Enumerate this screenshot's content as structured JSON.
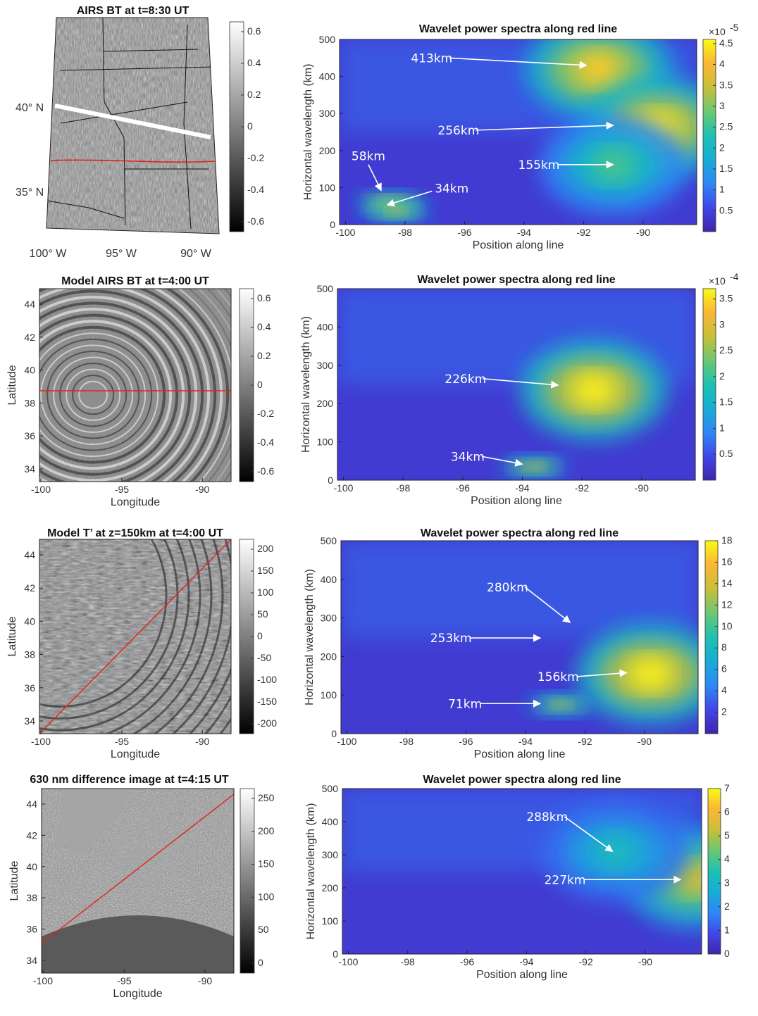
{
  "colors": {
    "viridis_low": "#3e26a8",
    "viridis_high": "#f9fb15",
    "red_line": "#e0231e",
    "arrow": "#ffffff"
  },
  "maps": [
    {
      "title": "AIRS BT at t=8:30 UT",
      "map_style": "geographic",
      "lat_labels": [
        "40° N",
        "35° N"
      ],
      "lon_labels": [
        "100° W",
        "95° W",
        "90° W"
      ],
      "cbar_ticks": [
        "0.6",
        "0.4",
        "0.2",
        "0",
        "-0.2",
        "-0.4",
        "-0.6"
      ]
    },
    {
      "title": "Model AIRS BT at t=4:00 UT",
      "map_style": "model",
      "xlabel": "Longitude",
      "ylabel": "Latitude",
      "xticks": [
        "-100",
        "-95",
        "-90"
      ],
      "yticks": [
        "44",
        "42",
        "40",
        "38",
        "36",
        "34"
      ],
      "cbar_ticks": [
        "0.6",
        "0.4",
        "0.2",
        "0",
        "-0.2",
        "-0.4",
        "-0.6"
      ]
    },
    {
      "title": "Model T’ at z=150km at t=4:00 UT",
      "map_style": "model3",
      "xlabel": "Longitude",
      "ylabel": "Latitude",
      "xticks": [
        "-100",
        "-95",
        "-90"
      ],
      "yticks": [
        "44",
        "42",
        "40",
        "38",
        "36",
        "34"
      ],
      "cbar_ticks": [
        "200",
        "150",
        "100",
        "50",
        "0",
        "-50",
        "-100",
        "-150",
        "-200"
      ]
    },
    {
      "title": "630 nm difference image at t=4:15 UT",
      "map_style": "airglow",
      "xlabel": "Longitude",
      "ylabel": "Latitude",
      "xticks": [
        "-100",
        "-95",
        "-90"
      ],
      "yticks": [
        "44",
        "42",
        "40",
        "38",
        "36",
        "34"
      ],
      "cbar_ticks": [
        "250",
        "200",
        "150",
        "100",
        "50",
        "0"
      ]
    }
  ],
  "chart_data": [
    {
      "type": "heatmap",
      "title": "Wavelet power spectra along red line",
      "xlabel": "Position along line",
      "ylabel": "Horizontal wavelength (km)",
      "xlim": [
        -100.2,
        -88.2
      ],
      "ylim": [
        0,
        500
      ],
      "xticks": [
        -100,
        -98,
        -96,
        -94,
        -92,
        -90
      ],
      "yticks": [
        0,
        100,
        200,
        300,
        400,
        500
      ],
      "colorbar": {
        "range": [
          0,
          4.6
        ],
        "ticks": [
          0.5,
          1,
          1.5,
          2,
          2.5,
          3,
          3.5,
          4,
          4.5
        ],
        "scale_label": "×10",
        "scale_exp": "-5"
      },
      "peaks": [
        {
          "x": -91.5,
          "y": 420,
          "value": 4.2
        },
        {
          "x": -89.5,
          "y": 262,
          "value": 4.4
        },
        {
          "x": -98.5,
          "y": 58,
          "value": 4.5
        },
        {
          "x": -98.3,
          "y": 36,
          "value": 4.0
        },
        {
          "x": -91.0,
          "y": 160,
          "value": 2.6
        }
      ],
      "annotations": [
        {
          "text": "413km",
          "text_x": -97.8,
          "text_y": 450,
          "arrow_x": -91.9,
          "arrow_y": 430
        },
        {
          "text": "256km",
          "text_x": -96.9,
          "text_y": 255,
          "arrow_x": -91.0,
          "arrow_y": 268
        },
        {
          "text": "155km",
          "text_x": -94.2,
          "text_y": 162,
          "arrow_x": -91.0,
          "arrow_y": 162
        },
        {
          "text": "58km",
          "text_x": -99.8,
          "text_y": 185,
          "arrow_x": -98.8,
          "arrow_y": 92
        },
        {
          "text": "34km",
          "text_x": -97.0,
          "text_y": 98,
          "arrow_x": -98.6,
          "arrow_y": 53
        }
      ]
    },
    {
      "type": "heatmap",
      "title": "Wavelet power spectra along red line",
      "xlabel": "Position along line",
      "ylabel": "Horizontal wavelength (km)",
      "xlim": [
        -100.2,
        -88.2
      ],
      "ylim": [
        0,
        500
      ],
      "xticks": [
        -100,
        -98,
        -96,
        -94,
        -92,
        -90
      ],
      "yticks": [
        0,
        100,
        200,
        300,
        400,
        500
      ],
      "colorbar": {
        "range": [
          0,
          3.7
        ],
        "ticks": [
          0.5,
          1,
          1.5,
          2,
          2.5,
          3,
          3.5
        ],
        "scale_label": "×10",
        "scale_exp": "-4"
      },
      "peaks": [
        {
          "x": -91.6,
          "y": 235,
          "value": 3.6
        },
        {
          "x": -93.6,
          "y": 35,
          "value": 3.2
        }
      ],
      "annotations": [
        {
          "text": "226km",
          "text_x": -96.6,
          "text_y": 265,
          "arrow_x": -92.8,
          "arrow_y": 248
        },
        {
          "text": "34km",
          "text_x": -96.4,
          "text_y": 62,
          "arrow_x": -94.0,
          "arrow_y": 42
        }
      ]
    },
    {
      "type": "heatmap",
      "title": "Wavelet power spectra along red line",
      "xlabel": "Position along line",
      "ylabel": "Horizontal wavelength (km)",
      "xlim": [
        -100.2,
        -88.2
      ],
      "ylim": [
        0,
        500
      ],
      "xticks": [
        -100,
        -98,
        -96,
        -94,
        -92,
        -90
      ],
      "yticks": [
        0,
        100,
        200,
        300,
        400,
        500
      ],
      "colorbar": {
        "range": [
          0,
          18
        ],
        "ticks": [
          2,
          4,
          6,
          8,
          10,
          12,
          14,
          16,
          18
        ]
      },
      "peaks": [
        {
          "x": -89.8,
          "y": 155,
          "value": 17.5
        },
        {
          "x": -92.8,
          "y": 75,
          "value": 15
        }
      ],
      "annotations": [
        {
          "text": "280km",
          "text_x": -95.3,
          "text_y": 380,
          "arrow_x": -92.5,
          "arrow_y": 288
        },
        {
          "text": "253km",
          "text_x": -97.2,
          "text_y": 248,
          "arrow_x": -93.5,
          "arrow_y": 248
        },
        {
          "text": "156km",
          "text_x": -93.6,
          "text_y": 148,
          "arrow_x": -90.6,
          "arrow_y": 158
        },
        {
          "text": "71km",
          "text_x": -96.6,
          "text_y": 78,
          "arrow_x": -93.5,
          "arrow_y": 78
        }
      ]
    },
    {
      "type": "heatmap",
      "title": "Wavelet power spectra along red line",
      "xlabel": "Position along line",
      "ylabel": "Horizontal wavelength (km)",
      "xlim": [
        -100.2,
        -88.1
      ],
      "ylim": [
        0,
        500
      ],
      "xticks": [
        -100,
        -98,
        -96,
        -94,
        -92,
        -90
      ],
      "yticks": [
        0,
        100,
        200,
        300,
        400,
        500
      ],
      "colorbar": {
        "range": [
          0,
          7
        ],
        "ticks": [
          0,
          1,
          2,
          3,
          4,
          5,
          6,
          7
        ]
      },
      "peaks": [
        {
          "x": -88.3,
          "y": 228,
          "value": 5.5
        },
        {
          "x": -91.0,
          "y": 310,
          "value": 3.2
        }
      ],
      "annotations": [
        {
          "text": "288km",
          "text_x": -94.0,
          "text_y": 415,
          "arrow_x": -91.1,
          "arrow_y": 310
        },
        {
          "text": "227km",
          "text_x": -93.4,
          "text_y": 225,
          "arrow_x": -88.8,
          "arrow_y": 225
        }
      ]
    }
  ]
}
